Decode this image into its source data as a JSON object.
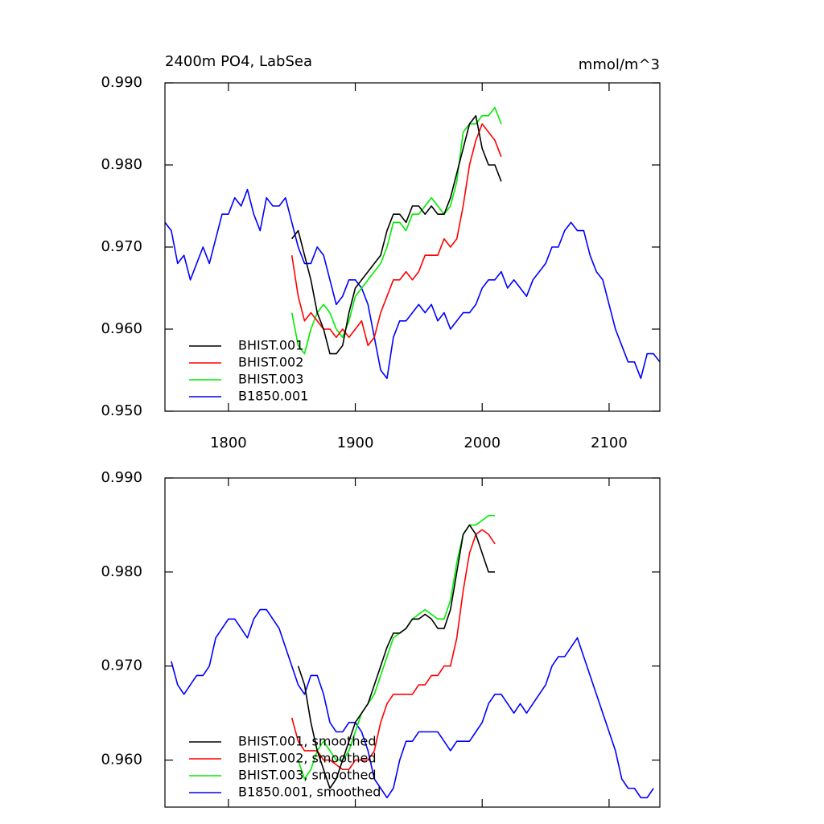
{
  "chart_data": [
    {
      "type": "line",
      "title": "2400m PO4, LabSea",
      "units": "mmol/m^3",
      "xlim": [
        1750,
        2140
      ],
      "xticks": [
        1800,
        1900,
        2000,
        2100
      ],
      "xtick_labels": true,
      "ylim": [
        0.95,
        0.99
      ],
      "yticks": [
        {
          "value": 0.95,
          "label": "0.950"
        },
        {
          "value": 0.96,
          "label": "0.960"
        },
        {
          "value": 0.97,
          "label": "0.970"
        },
        {
          "value": 0.98,
          "label": "0.980"
        },
        {
          "value": 0.99,
          "label": "0.990"
        }
      ],
      "legend": "lower left",
      "series": [
        {
          "name": "BHIST.001",
          "color": "#000000",
          "x": [
            1850,
            1855,
            1860,
            1865,
            1870,
            1875,
            1880,
            1885,
            1890,
            1895,
            1900,
            1905,
            1910,
            1915,
            1920,
            1925,
            1930,
            1935,
            1940,
            1945,
            1950,
            1955,
            1960,
            1965,
            1970,
            1975,
            1980,
            1985,
            1990,
            1995,
            2000,
            2005,
            2010,
            2015
          ],
          "values": [
            0.971,
            0.972,
            0.969,
            0.966,
            0.962,
            0.96,
            0.957,
            0.957,
            0.958,
            0.962,
            0.965,
            0.966,
            0.967,
            0.968,
            0.969,
            0.972,
            0.974,
            0.974,
            0.973,
            0.975,
            0.975,
            0.974,
            0.975,
            0.974,
            0.974,
            0.976,
            0.979,
            0.982,
            0.985,
            0.986,
            0.982,
            0.98,
            0.98,
            0.978
          ]
        },
        {
          "name": "BHIST.002",
          "color": "#ff0000",
          "x": [
            1850,
            1855,
            1860,
            1865,
            1870,
            1875,
            1880,
            1885,
            1890,
            1895,
            1900,
            1905,
            1910,
            1915,
            1920,
            1925,
            1930,
            1935,
            1940,
            1945,
            1950,
            1955,
            1960,
            1965,
            1970,
            1975,
            1980,
            1985,
            1990,
            1995,
            2000,
            2005,
            2010,
            2015
          ],
          "values": [
            0.969,
            0.964,
            0.961,
            0.962,
            0.961,
            0.96,
            0.96,
            0.959,
            0.96,
            0.959,
            0.96,
            0.961,
            0.958,
            0.959,
            0.962,
            0.964,
            0.966,
            0.966,
            0.967,
            0.966,
            0.967,
            0.969,
            0.969,
            0.969,
            0.971,
            0.97,
            0.971,
            0.975,
            0.98,
            0.983,
            0.985,
            0.984,
            0.983,
            0.981
          ]
        },
        {
          "name": "BHIST.003",
          "color": "#00ee00",
          "x": [
            1850,
            1855,
            1860,
            1865,
            1870,
            1875,
            1880,
            1885,
            1890,
            1895,
            1900,
            1905,
            1910,
            1915,
            1920,
            1925,
            1930,
            1935,
            1940,
            1945,
            1950,
            1955,
            1960,
            1965,
            1970,
            1975,
            1980,
            1985,
            1990,
            1995,
            2000,
            2005,
            2010,
            2015
          ],
          "values": [
            0.962,
            0.958,
            0.957,
            0.96,
            0.962,
            0.963,
            0.962,
            0.96,
            0.959,
            0.961,
            0.964,
            0.965,
            0.966,
            0.967,
            0.968,
            0.97,
            0.973,
            0.973,
            0.972,
            0.974,
            0.974,
            0.975,
            0.976,
            0.975,
            0.974,
            0.975,
            0.978,
            0.984,
            0.985,
            0.985,
            0.986,
            0.986,
            0.987,
            0.985
          ]
        },
        {
          "name": "B1850.001",
          "color": "#0000ff",
          "x": [
            1750,
            1755,
            1760,
            1765,
            1770,
            1775,
            1780,
            1785,
            1790,
            1795,
            1800,
            1805,
            1810,
            1815,
            1820,
            1825,
            1830,
            1835,
            1840,
            1845,
            1850,
            1855,
            1860,
            1865,
            1870,
            1875,
            1880,
            1885,
            1890,
            1895,
            1900,
            1905,
            1910,
            1915,
            1920,
            1925,
            1930,
            1935,
            1940,
            1945,
            1950,
            1955,
            1960,
            1965,
            1970,
            1975,
            1980,
            1985,
            1990,
            1995,
            2000,
            2005,
            2010,
            2015,
            2020,
            2025,
            2030,
            2035,
            2040,
            2045,
            2050,
            2055,
            2060,
            2065,
            2070,
            2075,
            2080,
            2085,
            2090,
            2095,
            2100,
            2105,
            2110,
            2115,
            2120,
            2125,
            2130,
            2135,
            2140
          ],
          "values": [
            0.973,
            0.972,
            0.968,
            0.969,
            0.966,
            0.968,
            0.97,
            0.968,
            0.971,
            0.974,
            0.974,
            0.976,
            0.975,
            0.977,
            0.974,
            0.972,
            0.976,
            0.975,
            0.975,
            0.976,
            0.973,
            0.97,
            0.968,
            0.968,
            0.97,
            0.969,
            0.966,
            0.963,
            0.964,
            0.966,
            0.966,
            0.965,
            0.963,
            0.959,
            0.955,
            0.954,
            0.959,
            0.961,
            0.961,
            0.962,
            0.963,
            0.962,
            0.963,
            0.961,
            0.962,
            0.96,
            0.961,
            0.962,
            0.962,
            0.963,
            0.965,
            0.966,
            0.966,
            0.967,
            0.965,
            0.966,
            0.965,
            0.964,
            0.966,
            0.967,
            0.968,
            0.97,
            0.97,
            0.972,
            0.973,
            0.972,
            0.972,
            0.969,
            0.967,
            0.966,
            0.963,
            0.96,
            0.958,
            0.956,
            0.956,
            0.954,
            0.957,
            0.957,
            0.956
          ]
        }
      ]
    },
    {
      "type": "line",
      "xlim": [
        1750,
        2140
      ],
      "xticks": [
        1800,
        1900,
        2000,
        2100
      ],
      "xtick_labels": false,
      "ylim": [
        0.955,
        0.99
      ],
      "yticks": [
        {
          "value": 0.96,
          "label": "0.960"
        },
        {
          "value": 0.97,
          "label": "0.970"
        },
        {
          "value": 0.98,
          "label": "0.980"
        },
        {
          "value": 0.99,
          "label": "0.990"
        }
      ],
      "legend": "lower left",
      "series": [
        {
          "name": "BHIST.001, smoothed",
          "color": "#000000",
          "x": [
            1855,
            1860,
            1865,
            1870,
            1875,
            1880,
            1885,
            1890,
            1895,
            1900,
            1905,
            1910,
            1915,
            1920,
            1925,
            1930,
            1935,
            1940,
            1945,
            1950,
            1955,
            1960,
            1965,
            1970,
            1975,
            1980,
            1985,
            1990,
            1995,
            2000,
            2005,
            2010
          ],
          "values": [
            0.97,
            0.968,
            0.964,
            0.961,
            0.959,
            0.957,
            0.958,
            0.96,
            0.962,
            0.964,
            0.965,
            0.966,
            0.968,
            0.97,
            0.972,
            0.9735,
            0.9735,
            0.974,
            0.975,
            0.975,
            0.9755,
            0.975,
            0.974,
            0.974,
            0.976,
            0.98,
            0.984,
            0.985,
            0.984,
            0.982,
            0.98,
            0.98
          ]
        },
        {
          "name": "BHIST.002, smoothed",
          "color": "#ff0000",
          "x": [
            1850,
            1855,
            1860,
            1865,
            1870,
            1875,
            1880,
            1885,
            1890,
            1895,
            1900,
            1905,
            1910,
            1915,
            1920,
            1925,
            1930,
            1935,
            1940,
            1945,
            1950,
            1955,
            1960,
            1965,
            1970,
            1975,
            1980,
            1985,
            1990,
            1995,
            2000,
            2005,
            2010
          ],
          "values": [
            0.9645,
            0.962,
            0.961,
            0.961,
            0.961,
            0.96,
            0.96,
            0.9595,
            0.959,
            0.959,
            0.96,
            0.96,
            0.96,
            0.961,
            0.964,
            0.966,
            0.967,
            0.967,
            0.967,
            0.967,
            0.968,
            0.968,
            0.969,
            0.969,
            0.97,
            0.97,
            0.973,
            0.978,
            0.982,
            0.984,
            0.9845,
            0.984,
            0.983
          ]
        },
        {
          "name": "BHIST.003, smoothed",
          "color": "#00ee00",
          "x": [
            1855,
            1860,
            1865,
            1870,
            1875,
            1880,
            1885,
            1890,
            1895,
            1900,
            1905,
            1910,
            1915,
            1920,
            1925,
            1930,
            1935,
            1940,
            1945,
            1950,
            1955,
            1960,
            1965,
            1970,
            1975,
            1980,
            1985,
            1990,
            1995,
            2000,
            2005,
            2010
          ],
          "values": [
            0.96,
            0.958,
            0.959,
            0.961,
            0.962,
            0.961,
            0.96,
            0.96,
            0.961,
            0.963,
            0.965,
            0.966,
            0.967,
            0.969,
            0.971,
            0.973,
            0.9735,
            0.974,
            0.975,
            0.9755,
            0.976,
            0.9755,
            0.975,
            0.975,
            0.977,
            0.981,
            0.984,
            0.985,
            0.985,
            0.9855,
            0.986,
            0.986
          ]
        },
        {
          "name": "B1850.001, smoothed",
          "color": "#0000ff",
          "x": [
            1755,
            1760,
            1765,
            1770,
            1775,
            1780,
            1785,
            1790,
            1795,
            1800,
            1805,
            1810,
            1815,
            1820,
            1825,
            1830,
            1835,
            1840,
            1845,
            1850,
            1855,
            1860,
            1865,
            1870,
            1875,
            1880,
            1885,
            1890,
            1895,
            1900,
            1905,
            1910,
            1915,
            1920,
            1925,
            1930,
            1935,
            1940,
            1945,
            1950,
            1955,
            1960,
            1965,
            1970,
            1975,
            1980,
            1985,
            1990,
            1995,
            2000,
            2005,
            2010,
            2015,
            2020,
            2025,
            2030,
            2035,
            2040,
            2045,
            2050,
            2055,
            2060,
            2065,
            2070,
            2075,
            2080,
            2085,
            2090,
            2095,
            2100,
            2105,
            2110,
            2115,
            2120,
            2125,
            2130,
            2135
          ],
          "values": [
            0.9705,
            0.968,
            0.967,
            0.968,
            0.969,
            0.969,
            0.97,
            0.973,
            0.974,
            0.975,
            0.975,
            0.974,
            0.973,
            0.975,
            0.976,
            0.976,
            0.975,
            0.974,
            0.972,
            0.97,
            0.968,
            0.967,
            0.969,
            0.969,
            0.967,
            0.964,
            0.963,
            0.963,
            0.964,
            0.964,
            0.963,
            0.961,
            0.958,
            0.957,
            0.956,
            0.957,
            0.96,
            0.962,
            0.962,
            0.963,
            0.963,
            0.963,
            0.963,
            0.962,
            0.961,
            0.962,
            0.962,
            0.962,
            0.963,
            0.964,
            0.966,
            0.967,
            0.967,
            0.966,
            0.965,
            0.966,
            0.965,
            0.966,
            0.967,
            0.968,
            0.97,
            0.971,
            0.971,
            0.972,
            0.973,
            0.971,
            0.969,
            0.967,
            0.965,
            0.963,
            0.961,
            0.958,
            0.957,
            0.957,
            0.956,
            0.956,
            0.957
          ]
        }
      ]
    }
  ]
}
